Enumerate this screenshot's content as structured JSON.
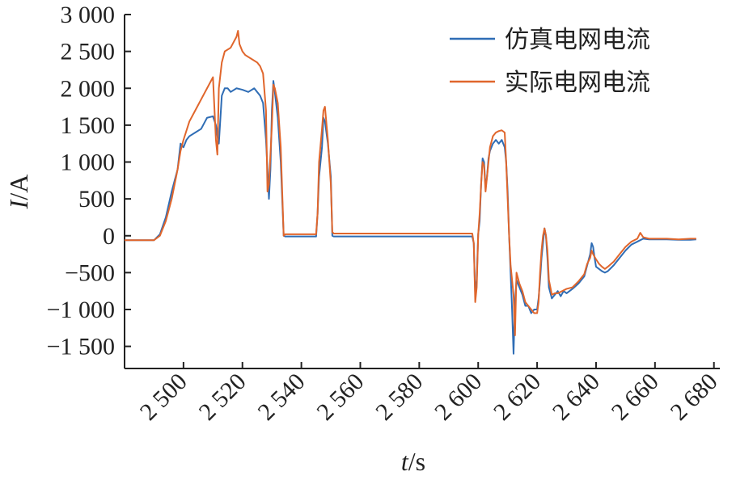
{
  "chart_data": {
    "type": "line",
    "xlabel": "t/s",
    "ylabel": "I/A",
    "xlim": [
      2480,
      2682
    ],
    "ylim": [
      -1800,
      3000
    ],
    "x_ticks": [
      2500,
      2520,
      2540,
      2560,
      2580,
      2600,
      2620,
      2640,
      2660,
      2680
    ],
    "x_tick_labels": [
      "2 500",
      "2 520",
      "2 540",
      "2 560",
      "2 580",
      "2 600",
      "2 620",
      "2 640",
      "2 660",
      "2 680"
    ],
    "y_ticks": [
      3000,
      2500,
      2000,
      1500,
      1000,
      500,
      0,
      -500,
      -1000,
      -1500
    ],
    "y_tick_labels": [
      "3 000",
      "2 500",
      "2 000",
      "1 500",
      "1 000",
      "500",
      "0",
      "−500",
      "−1 000",
      "−1 500"
    ],
    "legend_position": "top-right",
    "series": [
      {
        "name": "仿真电网电流",
        "color": "#2f6db5",
        "points": [
          [
            2480,
            -60
          ],
          [
            2490,
            -60
          ],
          [
            2492,
            20
          ],
          [
            2494,
            250
          ],
          [
            2496,
            600
          ],
          [
            2498,
            900
          ],
          [
            2499,
            1250
          ],
          [
            2500,
            1200
          ],
          [
            2501,
            1300
          ],
          [
            2502,
            1350
          ],
          [
            2504,
            1400
          ],
          [
            2506,
            1450
          ],
          [
            2508,
            1600
          ],
          [
            2510,
            1620
          ],
          [
            2511,
            1500
          ],
          [
            2511.5,
            1350
          ],
          [
            2512,
            1250
          ],
          [
            2513,
            1900
          ],
          [
            2514,
            2000
          ],
          [
            2515,
            2000
          ],
          [
            2516,
            1950
          ],
          [
            2518,
            2000
          ],
          [
            2520,
            1980
          ],
          [
            2522,
            1950
          ],
          [
            2524,
            2000
          ],
          [
            2526,
            1900
          ],
          [
            2527,
            1800
          ],
          [
            2528,
            1300
          ],
          [
            2529,
            500
          ],
          [
            2529.5,
            900
          ],
          [
            2530,
            1700
          ],
          [
            2530.5,
            2100
          ],
          [
            2531,
            1950
          ],
          [
            2532,
            1600
          ],
          [
            2533,
            1000
          ],
          [
            2534,
            0
          ],
          [
            2534.5,
            -10
          ],
          [
            2545,
            -10
          ],
          [
            2545.5,
            300
          ],
          [
            2546,
            800
          ],
          [
            2547,
            1200
          ],
          [
            2547.5,
            1600
          ],
          [
            2548,
            1550
          ],
          [
            2549,
            1250
          ],
          [
            2550,
            800
          ],
          [
            2550.5,
            0
          ],
          [
            2551,
            -10
          ],
          [
            2598,
            -10
          ],
          [
            2598.5,
            -100
          ],
          [
            2599,
            -800
          ],
          [
            2599.5,
            -600
          ],
          [
            2600,
            20
          ],
          [
            2600.5,
            200
          ],
          [
            2601,
            700
          ],
          [
            2601.5,
            1050
          ],
          [
            2602,
            1000
          ],
          [
            2602.5,
            650
          ],
          [
            2603,
            800
          ],
          [
            2603.5,
            1050
          ],
          [
            2604,
            1150
          ],
          [
            2605,
            1250
          ],
          [
            2606,
            1300
          ],
          [
            2607,
            1250
          ],
          [
            2608,
            1300
          ],
          [
            2609,
            1200
          ],
          [
            2609.5,
            1000
          ],
          [
            2610,
            600
          ],
          [
            2610.5,
            0
          ],
          [
            2611,
            -500
          ],
          [
            2611.5,
            -1000
          ],
          [
            2612,
            -1600
          ],
          [
            2612.5,
            -900
          ],
          [
            2613,
            -600
          ],
          [
            2614,
            -700
          ],
          [
            2615,
            -800
          ],
          [
            2616,
            -950
          ],
          [
            2617,
            -950
          ],
          [
            2618,
            -1050
          ],
          [
            2619,
            -1000
          ],
          [
            2620,
            -1000
          ],
          [
            2620.5,
            -850
          ],
          [
            2621,
            -600
          ],
          [
            2621.5,
            -300
          ],
          [
            2622,
            -100
          ],
          [
            2622.5,
            100
          ],
          [
            2623,
            0
          ],
          [
            2623.5,
            -300
          ],
          [
            2624,
            -700
          ],
          [
            2625,
            -850
          ],
          [
            2626,
            -800
          ],
          [
            2627,
            -750
          ],
          [
            2628,
            -820
          ],
          [
            2629,
            -750
          ],
          [
            2630,
            -780
          ],
          [
            2632,
            -720
          ],
          [
            2634,
            -650
          ],
          [
            2636,
            -550
          ],
          [
            2637,
            -400
          ],
          [
            2638,
            -250
          ],
          [
            2638.5,
            -100
          ],
          [
            2639,
            -150
          ],
          [
            2639.5,
            -300
          ],
          [
            2640,
            -420
          ],
          [
            2641,
            -450
          ],
          [
            2642,
            -480
          ],
          [
            2643,
            -500
          ],
          [
            2644,
            -480
          ],
          [
            2646,
            -400
          ],
          [
            2648,
            -300
          ],
          [
            2650,
            -200
          ],
          [
            2652,
            -120
          ],
          [
            2654,
            -80
          ],
          [
            2656,
            -40
          ],
          [
            2658,
            -50
          ],
          [
            2660,
            -50
          ],
          [
            2664,
            -50
          ],
          [
            2668,
            -55
          ],
          [
            2672,
            -55
          ],
          [
            2674,
            -50
          ]
        ]
      },
      {
        "name": "实际电网电流",
        "color": "#e0662c",
        "points": [
          [
            2480,
            -60
          ],
          [
            2490,
            -60
          ],
          [
            2492,
            0
          ],
          [
            2494,
            200
          ],
          [
            2496,
            500
          ],
          [
            2498,
            900
          ],
          [
            2499,
            1150
          ],
          [
            2500,
            1300
          ],
          [
            2502,
            1550
          ],
          [
            2504,
            1700
          ],
          [
            2506,
            1850
          ],
          [
            2508,
            2000
          ],
          [
            2510,
            2150
          ],
          [
            2511,
            1300
          ],
          [
            2511.5,
            1100
          ],
          [
            2512,
            2000
          ],
          [
            2513,
            2350
          ],
          [
            2514,
            2500
          ],
          [
            2516,
            2550
          ],
          [
            2518,
            2700
          ],
          [
            2518.5,
            2780
          ],
          [
            2519,
            2600
          ],
          [
            2520,
            2500
          ],
          [
            2521,
            2450
          ],
          [
            2523,
            2400
          ],
          [
            2525,
            2350
          ],
          [
            2526,
            2300
          ],
          [
            2527,
            2200
          ],
          [
            2528,
            1700
          ],
          [
            2528.5,
            600
          ],
          [
            2529,
            700
          ],
          [
            2530,
            1500
          ],
          [
            2530.5,
            2050
          ],
          [
            2531,
            2000
          ],
          [
            2532,
            1800
          ],
          [
            2533,
            1200
          ],
          [
            2534,
            0
          ],
          [
            2534.5,
            20
          ],
          [
            2545,
            20
          ],
          [
            2545.5,
            300
          ],
          [
            2546,
            1000
          ],
          [
            2547,
            1450
          ],
          [
            2547.5,
            1700
          ],
          [
            2548,
            1750
          ],
          [
            2549,
            1300
          ],
          [
            2550,
            700
          ],
          [
            2550.5,
            50
          ],
          [
            2551,
            30
          ],
          [
            2598,
            30
          ],
          [
            2598.5,
            -100
          ],
          [
            2599,
            -900
          ],
          [
            2599.5,
            -700
          ],
          [
            2600,
            10
          ],
          [
            2600.5,
            300
          ],
          [
            2601,
            700
          ],
          [
            2601.5,
            1000
          ],
          [
            2602,
            950
          ],
          [
            2602.5,
            600
          ],
          [
            2603,
            800
          ],
          [
            2603.5,
            1000
          ],
          [
            2604,
            1200
          ],
          [
            2605,
            1350
          ],
          [
            2606,
            1400
          ],
          [
            2607,
            1420
          ],
          [
            2608,
            1430
          ],
          [
            2609,
            1400
          ],
          [
            2609.5,
            1000
          ],
          [
            2610,
            500
          ],
          [
            2610.5,
            0
          ],
          [
            2611,
            -400
          ],
          [
            2612,
            -800
          ],
          [
            2612.5,
            -1350
          ],
          [
            2613,
            -500
          ],
          [
            2614,
            -650
          ],
          [
            2615,
            -750
          ],
          [
            2616,
            -900
          ],
          [
            2617,
            -950
          ],
          [
            2618,
            -1000
          ],
          [
            2619,
            -1050
          ],
          [
            2620,
            -1050
          ],
          [
            2620.5,
            -900
          ],
          [
            2621,
            -500
          ],
          [
            2621.5,
            -200
          ],
          [
            2622,
            0
          ],
          [
            2622.5,
            100
          ],
          [
            2623,
            0
          ],
          [
            2623.5,
            -200
          ],
          [
            2624,
            -600
          ],
          [
            2625,
            -800
          ],
          [
            2626,
            -780
          ],
          [
            2627,
            -780
          ],
          [
            2628,
            -760
          ],
          [
            2630,
            -720
          ],
          [
            2632,
            -700
          ],
          [
            2634,
            -620
          ],
          [
            2636,
            -520
          ],
          [
            2637,
            -380
          ],
          [
            2638,
            -300
          ],
          [
            2638.5,
            -200
          ],
          [
            2639,
            -250
          ],
          [
            2640,
            -320
          ],
          [
            2641,
            -380
          ],
          [
            2642,
            -420
          ],
          [
            2643,
            -450
          ],
          [
            2644,
            -420
          ],
          [
            2646,
            -350
          ],
          [
            2648,
            -250
          ],
          [
            2650,
            -150
          ],
          [
            2652,
            -80
          ],
          [
            2654,
            -40
          ],
          [
            2655,
            40
          ],
          [
            2656,
            -20
          ],
          [
            2658,
            -40
          ],
          [
            2660,
            -40
          ],
          [
            2664,
            -40
          ],
          [
            2668,
            -50
          ],
          [
            2672,
            -40
          ],
          [
            2674,
            -40
          ]
        ]
      }
    ]
  }
}
